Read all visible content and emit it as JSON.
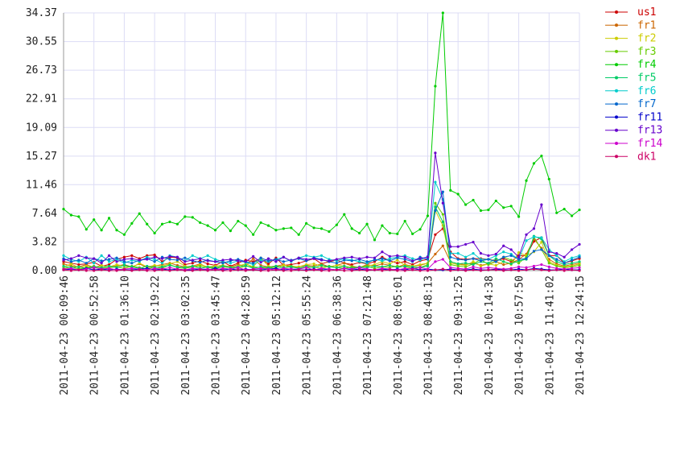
{
  "chart_data": {
    "type": "line",
    "categories": [
      "2011-04-23 00:09:46",
      null,
      null,
      null,
      "2011-04-23 00:52:58",
      null,
      null,
      null,
      "2011-04-23 01:36:10",
      null,
      null,
      null,
      "2011-04-23 02:19:22",
      null,
      null,
      null,
      "2011-04-23 03:02:35",
      null,
      null,
      null,
      "2011-04-23 03:45:47",
      null,
      null,
      null,
      "2011-04-23 04:28:59",
      null,
      null,
      null,
      "2011-04-23 05:12:12",
      null,
      null,
      null,
      "2011-04-23 05:55:24",
      null,
      null,
      null,
      "2011-04-23 06:38:36",
      null,
      null,
      null,
      "2011-04-23 07:21:48",
      null,
      null,
      null,
      "2011-04-23 08:05:01",
      null,
      null,
      null,
      "2011-04-23 08:48:13",
      null,
      null,
      null,
      "2011-04-23 09:31:25",
      null,
      null,
      null,
      "2011-04-23 10:14:38",
      null,
      null,
      null,
      "2011-04-23 10:57:50",
      null,
      null,
      null,
      "2011-04-23 11:41:02",
      null,
      null,
      null,
      "2011-04-23 12:24:15"
    ],
    "ylim": [
      0,
      34.37
    ],
    "yticks": [
      {
        "value": 0,
        "label": "0.00"
      },
      3.82,
      7.64,
      11.46,
      15.27,
      19.09,
      22.91,
      26.73,
      30.55,
      34.37
    ],
    "grid": true,
    "series": [
      {
        "name": "us1",
        "color": "#cc0000",
        "values": [
          1.2,
          1.0,
          0.8,
          0.9,
          1.1,
          0.6,
          0.8,
          1.5,
          1.8,
          2.0,
          1.6,
          2.0,
          2.1,
          1.2,
          1.8,
          1.7,
          0.8,
          1.0,
          1.3,
          0.9,
          0.7,
          1.2,
          0.6,
          1.0,
          1.4,
          1.2,
          1.6,
          0.9,
          1.7,
          0.7,
          0.8,
          1.0,
          1.3,
          1.6,
          0.9,
          1.2,
          1.4,
          1.0,
          0.8,
          1.1,
          0.9,
          1.2,
          1.8,
          1.3,
          1.0,
          1.2,
          0.8,
          1.3,
          1.5,
          4.8,
          5.6,
          2.5,
          1.6,
          1.5,
          1.6,
          1.6,
          1.5,
          1.3,
          1.6,
          1.2,
          2.0,
          2.0,
          3.9,
          4.4,
          2.0,
          2.0,
          1.0,
          1.3,
          1.6
        ]
      },
      {
        "name": "fr1",
        "color": "#cc6600",
        "values": [
          0.9,
          0.6,
          0.5,
          0.8,
          0.4,
          0.7,
          0.5,
          0.6,
          0.8,
          0.5,
          0.9,
          0.4,
          0.6,
          0.8,
          1.0,
          0.7,
          0.5,
          0.6,
          0.9,
          0.4,
          0.6,
          0.7,
          0.5,
          0.8,
          0.6,
          1.6,
          0.7,
          0.5,
          0.6,
          0.8,
          0.4,
          0.5,
          0.7,
          0.6,
          0.9,
          0.5,
          0.7,
          1.0,
          0.6,
          0.4,
          0.8,
          0.6,
          0.9,
          0.7,
          0.5,
          0.8,
          0.6,
          0.7,
          1.0,
          2.2,
          3.3,
          1.2,
          0.9,
          0.8,
          1.0,
          0.7,
          0.9,
          1.2,
          0.8,
          1.0,
          1.5,
          2.2,
          4.2,
          3.0,
          1.5,
          0.9,
          0.6,
          0.8,
          1.0
        ]
      },
      {
        "name": "fr2",
        "color": "#cccc00",
        "values": [
          0.5,
          0.9,
          0.4,
          0.6,
          0.3,
          0.7,
          0.5,
          0.8,
          0.6,
          0.4,
          1.0,
          0.5,
          0.7,
          0.6,
          0.9,
          1.2,
          0.6,
          0.4,
          0.8,
          0.5,
          0.6,
          0.7,
          0.4,
          0.6,
          0.9,
          0.5,
          1.7,
          0.6,
          0.4,
          0.7,
          0.6,
          0.5,
          0.8,
          0.9,
          0.6,
          0.5,
          0.7,
          0.6,
          0.4,
          0.5,
          0.6,
          0.8,
          1.2,
          0.9,
          1.4,
          0.7,
          0.6,
          0.8,
          1.0,
          8.0,
          6.0,
          1.0,
          0.8,
          0.7,
          1.2,
          0.6,
          0.9,
          0.7,
          1.2,
          0.8,
          2.4,
          2.0,
          2.5,
          3.8,
          1.2,
          0.7,
          0.5,
          0.6,
          0.9
        ]
      },
      {
        "name": "fr3",
        "color": "#66cc00",
        "values": [
          0.3,
          0.5,
          0.2,
          0.4,
          0.6,
          0.3,
          0.4,
          0.5,
          0.3,
          0.6,
          0.4,
          0.2,
          0.5,
          0.3,
          0.8,
          0.4,
          0.3,
          0.5,
          0.6,
          0.4,
          0.3,
          0.5,
          0.4,
          0.3,
          0.6,
          0.5,
          0.4,
          0.3,
          0.5,
          0.4,
          0.6,
          0.3,
          0.4,
          0.5,
          0.3,
          0.6,
          0.4,
          0.3,
          0.5,
          0.4,
          0.6,
          0.3,
          0.5,
          0.4,
          0.6,
          0.5,
          0.3,
          0.4,
          0.8,
          9.0,
          7.5,
          0.8,
          0.6,
          0.5,
          0.9,
          1.5,
          0.8,
          1.2,
          1.8,
          1.4,
          1.0,
          1.8,
          4.5,
          2.8,
          1.0,
          0.6,
          0.4,
          0.5,
          0.7
        ]
      },
      {
        "name": "fr4",
        "color": "#00cc00",
        "values": [
          8.2,
          7.4,
          7.2,
          5.5,
          6.8,
          5.4,
          7.0,
          5.4,
          4.8,
          6.3,
          7.6,
          6.2,
          5.0,
          6.2,
          6.5,
          6.2,
          7.2,
          7.1,
          6.4,
          6.0,
          5.4,
          6.4,
          5.3,
          6.6,
          6.0,
          4.8,
          6.4,
          6.0,
          5.4,
          5.6,
          5.7,
          4.8,
          6.3,
          5.7,
          5.6,
          5.2,
          6.1,
          7.5,
          5.6,
          5.0,
          6.2,
          4.1,
          6.0,
          5.0,
          4.9,
          6.6,
          4.9,
          5.5,
          7.3,
          24.6,
          34.37,
          10.7,
          10.2,
          8.8,
          9.4,
          8.0,
          8.1,
          9.3,
          8.4,
          8.6,
          7.2,
          12.0,
          14.3,
          15.3,
          12.2,
          7.7,
          8.2,
          7.3,
          8.1
        ]
      },
      {
        "name": "fr5",
        "color": "#00cc66",
        "values": [
          0.6,
          0.4,
          0.5,
          0.3,
          0.5,
          0.4,
          0.6,
          0.4,
          0.7,
          0.5,
          0.3,
          0.6,
          0.4,
          0.5,
          0.7,
          0.5,
          0.4,
          0.6,
          0.3,
          0.5,
          0.4,
          0.6,
          0.4,
          0.5,
          0.7,
          0.3,
          0.5,
          0.4,
          0.6,
          0.4,
          0.5,
          0.3,
          0.6,
          0.4,
          0.7,
          0.5,
          0.4,
          0.6,
          0.3,
          0.5,
          0.4,
          0.6,
          0.5,
          0.7,
          0.4,
          0.6,
          0.5,
          0.4,
          0.6,
          8.5,
          6.5,
          1.2,
          0.9,
          1.0,
          0.8,
          1.2,
          1.0,
          1.6,
          1.2,
          0.9,
          1.3,
          1.5,
          4.6,
          4.2,
          2.0,
          1.2,
          0.8,
          1.0,
          1.2
        ]
      },
      {
        "name": "fr6",
        "color": "#00cccc",
        "values": [
          2.0,
          1.5,
          1.2,
          1.8,
          1.0,
          2.0,
          1.2,
          1.5,
          1.0,
          1.4,
          1.2,
          1.8,
          1.5,
          1.0,
          2.0,
          1.8,
          1.3,
          2.0,
          1.6,
          2.0,
          1.5,
          1.2,
          1.0,
          1.3,
          1.1,
          0.8,
          1.4,
          1.2,
          1.5,
          1.8,
          1.2,
          1.7,
          2.0,
          1.8,
          2.0,
          1.5,
          1.3,
          1.6,
          1.4,
          1.2,
          1.0,
          1.5,
          1.3,
          1.6,
          1.8,
          2.0,
          1.6,
          1.4,
          1.9,
          11.8,
          9.5,
          2.3,
          2.3,
          1.8,
          2.3,
          1.5,
          1.5,
          2.0,
          2.5,
          2.2,
          1.5,
          4.0,
          4.5,
          4.4,
          2.8,
          2.0,
          1.2,
          1.7,
          2.0
        ]
      },
      {
        "name": "fr7",
        "color": "#0066cc",
        "values": [
          1.6,
          1.2,
          1.4,
          1.0,
          1.6,
          1.3,
          1.5,
          1.7,
          1.2,
          1.0,
          1.4,
          1.6,
          1.2,
          1.8,
          1.5,
          1.4,
          1.7,
          1.3,
          1.1,
          1.4,
          1.2,
          1.0,
          1.3,
          1.5,
          1.2,
          1.0,
          1.7,
          1.3,
          1.5,
          1.2,
          1.4,
          1.6,
          1.3,
          1.7,
          1.5,
          1.2,
          1.0,
          1.4,
          1.3,
          1.5,
          1.2,
          1.4,
          1.6,
          1.3,
          1.7,
          1.5,
          1.2,
          1.8,
          1.5,
          8.0,
          10.5,
          1.8,
          1.5,
          1.4,
          1.6,
          1.3,
          1.5,
          1.2,
          1.8,
          2.0,
          1.5,
          1.6,
          2.6,
          2.8,
          2.0,
          1.5,
          1.0,
          1.4,
          1.8
        ]
      },
      {
        "name": "fr11",
        "color": "#0000cc",
        "values": [
          0.1,
          0.2,
          0.1,
          0.3,
          0.1,
          0.2,
          0.1,
          0.2,
          0.1,
          0.1,
          0.2,
          0.3,
          0.1,
          0.2,
          0.1,
          0.2,
          0.1,
          0.1,
          0.2,
          0.1,
          0.3,
          0.1,
          0.2,
          0.1,
          0.2,
          0.1,
          0.1,
          0.2,
          0.3,
          0.1,
          0.2,
          0.1,
          0.1,
          0.2,
          0.1,
          0.2,
          0.1,
          0.3,
          0.1,
          0.2,
          0.1,
          0.1,
          0.2,
          0.1,
          0.2,
          0.1,
          0.3,
          0.1,
          0.2,
          0.1,
          0.1,
          0.2,
          0.1,
          0.1,
          0.2,
          0.1,
          0.1,
          0.2,
          0.1,
          0.1,
          0.2,
          0.1,
          0.3,
          0.2,
          0.1,
          0.1,
          0.2,
          0.1,
          0.1
        ]
      },
      {
        "name": "fr13",
        "color": "#6600cc",
        "values": [
          1.4,
          1.6,
          2.0,
          1.7,
          1.6,
          1.0,
          2.0,
          1.2,
          1.5,
          1.6,
          1.4,
          1.5,
          1.8,
          1.6,
          1.9,
          1.8,
          1.2,
          1.4,
          1.6,
          1.3,
          1.2,
          1.4,
          1.5,
          1.3,
          1.2,
          1.9,
          1.1,
          1.6,
          1.2,
          1.8,
          1.3,
          1.7,
          1.5,
          1.6,
          1.4,
          1.3,
          1.5,
          1.7,
          1.8,
          1.6,
          1.8,
          1.7,
          2.5,
          1.9,
          2.0,
          1.8,
          1.3,
          1.6,
          1.8,
          15.7,
          9.0,
          3.2,
          3.2,
          3.5,
          3.8,
          2.3,
          2.0,
          2.2,
          3.3,
          2.8,
          1.8,
          4.8,
          5.6,
          8.8,
          2.5,
          2.3,
          1.8,
          2.8,
          3.5
        ]
      },
      {
        "name": "fr14",
        "color": "#cc00cc",
        "values": [
          0.2,
          0.3,
          0.1,
          0.2,
          0.4,
          0.2,
          0.3,
          0.1,
          0.2,
          0.3,
          0.2,
          0.1,
          0.3,
          0.2,
          0.4,
          0.2,
          0.1,
          0.3,
          0.2,
          0.2,
          0.1,
          0.3,
          0.2,
          0.4,
          0.1,
          0.2,
          0.3,
          0.2,
          0.1,
          0.3,
          0.2,
          0.2,
          0.4,
          0.1,
          0.3,
          0.2,
          0.1,
          0.3,
          0.2,
          0.4,
          0.2,
          0.1,
          0.3,
          0.2,
          0.1,
          0.3,
          0.2,
          0.4,
          0.2,
          1.2,
          1.5,
          0.4,
          0.3,
          0.2,
          0.5,
          0.3,
          0.4,
          0.3,
          0.2,
          0.3,
          0.5,
          0.4,
          0.6,
          0.8,
          0.5,
          0.3,
          0.2,
          0.3,
          0.4
        ]
      },
      {
        "name": "dk1",
        "color": "#cc0066",
        "values": [
          0.1,
          0.0,
          0.1,
          0.0,
          0.0,
          0.1,
          0.0,
          0.0,
          0.1,
          0.0,
          0.1,
          0.0,
          0.0,
          0.1,
          0.0,
          0.1,
          0.0,
          0.0,
          0.1,
          0.0,
          0.1,
          0.0,
          0.0,
          0.1,
          0.0,
          0.1,
          0.0,
          0.0,
          0.1,
          0.0,
          0.0,
          0.1,
          0.0,
          0.1,
          0.0,
          0.0,
          0.1,
          0.0,
          0.0,
          0.1,
          0.0,
          0.1,
          0.0,
          0.1,
          0.0,
          0.0,
          0.1,
          0.0,
          0.0,
          0.1,
          0.2,
          0.0,
          0.1,
          0.0,
          0.1,
          0.0,
          0.1,
          0.1,
          0.0,
          0.1,
          0.0,
          0.1,
          0.2,
          0.1,
          0.0,
          0.1,
          0.0,
          0.1,
          0.0
        ]
      }
    ]
  }
}
